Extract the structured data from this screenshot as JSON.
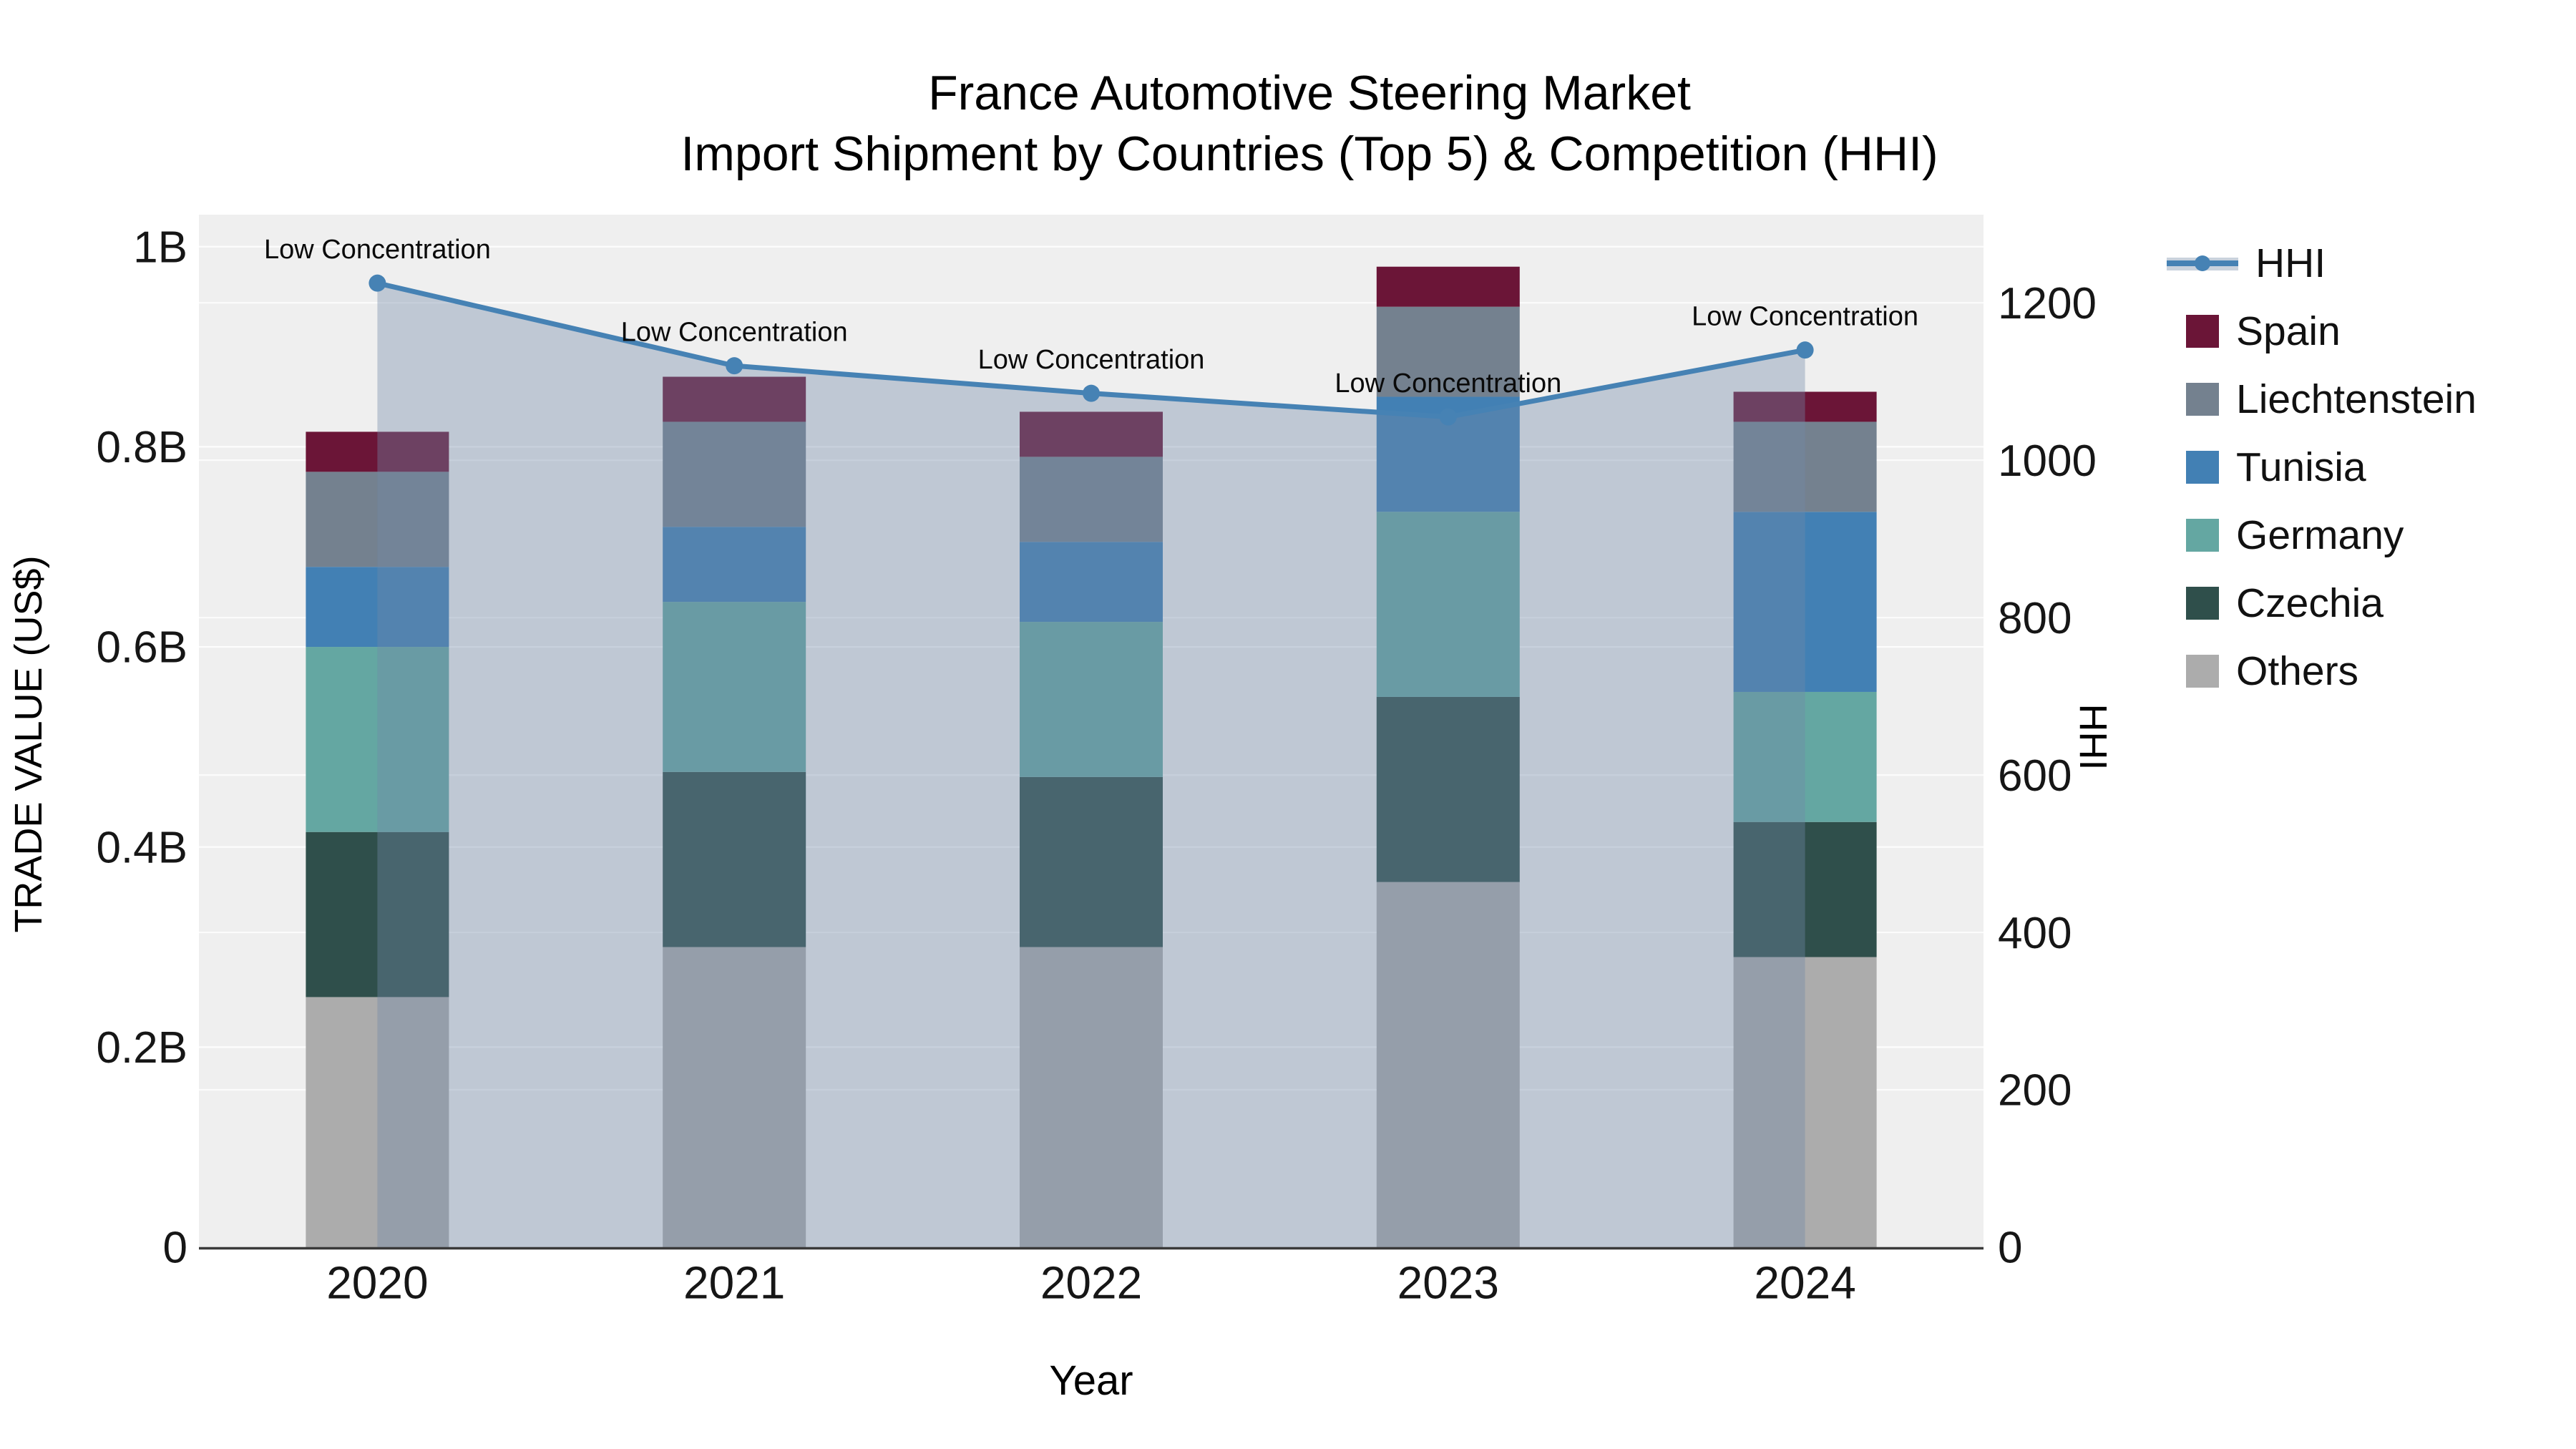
{
  "title": {
    "line1": "France Automotive Steering Market",
    "line2": "Import Shipment by Countries (Top 5) & Competition (HHI)"
  },
  "axes": {
    "x_title": "Year",
    "y_left_title": "TRADE VALUE (US$)",
    "y_right_title": "HHI",
    "x_ticks": [
      "2020",
      "2021",
      "2022",
      "2023",
      "2024"
    ],
    "y_left_ticks": [
      {
        "value": 0,
        "label": "0"
      },
      {
        "value": 0.2,
        "label": "0.2B"
      },
      {
        "value": 0.4,
        "label": "0.4B"
      },
      {
        "value": 0.6,
        "label": "0.6B"
      },
      {
        "value": 0.8,
        "label": "0.8B"
      },
      {
        "value": 1.0,
        "label": "1B"
      }
    ],
    "y_right_ticks": [
      {
        "value": 0,
        "label": "0"
      },
      {
        "value": 200,
        "label": "200"
      },
      {
        "value": 400,
        "label": "400"
      },
      {
        "value": 600,
        "label": "600"
      },
      {
        "value": 800,
        "label": "800"
      },
      {
        "value": 1000,
        "label": "1000"
      },
      {
        "value": 1200,
        "label": "1200"
      }
    ]
  },
  "legend": {
    "position": "right",
    "items": [
      {
        "label": "HHI",
        "type": "line-marker",
        "color": "#4682B4"
      },
      {
        "label": "Spain",
        "type": "swatch",
        "color": "#6B1537"
      },
      {
        "label": "Liechtenstein",
        "type": "swatch",
        "color": "#74818F"
      },
      {
        "label": "Tunisia",
        "type": "swatch",
        "color": "#4280B4"
      },
      {
        "label": "Germany",
        "type": "swatch",
        "color": "#64A7A2"
      },
      {
        "label": "Czechia",
        "type": "swatch",
        "color": "#2F4F4B"
      },
      {
        "label": "Others",
        "type": "swatch",
        "color": "#ACACAC"
      }
    ]
  },
  "colors": {
    "plot_background": "#efefef",
    "gridline": "#ffffff",
    "axis_line": "#3a3a3a",
    "tick_text": "#161616",
    "annotation_text": "#0a0a0a",
    "hhi_line": "#4682B4",
    "hhi_area_fill": "rgba(113,138,168,0.38)"
  },
  "chart_data": {
    "type": "composite",
    "components": [
      "stacked_bar",
      "line_with_area"
    ],
    "categories": [
      "2020",
      "2021",
      "2022",
      "2023",
      "2024"
    ],
    "bar_value_unit": "billion US$ (TRADE VALUE, left axis)",
    "bar_series": [
      {
        "name": "Spain",
        "color": "#6B1537",
        "values": [
          0.04,
          0.045,
          0.045,
          0.04,
          0.03
        ]
      },
      {
        "name": "Liechtenstein",
        "color": "#74818F",
        "values": [
          0.095,
          0.105,
          0.085,
          0.09,
          0.09
        ]
      },
      {
        "name": "Tunisia",
        "color": "#4280B4",
        "values": [
          0.08,
          0.075,
          0.08,
          0.115,
          0.18
        ]
      },
      {
        "name": "Germany",
        "color": "#64A7A2",
        "values": [
          0.185,
          0.17,
          0.155,
          0.185,
          0.13
        ]
      },
      {
        "name": "Czechia",
        "color": "#2F4F4B",
        "values": [
          0.165,
          0.175,
          0.17,
          0.185,
          0.135
        ]
      },
      {
        "name": "Others",
        "color": "#ACACAC",
        "values": [
          0.25,
          0.3,
          0.3,
          0.365,
          0.29
        ]
      }
    ],
    "stack_order_bottom_to_top": [
      "Others",
      "Czechia",
      "Germany",
      "Tunisia",
      "Liechtenstein",
      "Spain"
    ],
    "bar_totals": [
      0.815,
      0.87,
      0.835,
      0.98,
      0.855
    ],
    "line_series": {
      "name": "HHI",
      "axis": "right",
      "color": "#4682B4",
      "area_fill": "rgba(113,138,168,0.38)",
      "values": [
        1225,
        1120,
        1085,
        1055,
        1140
      ]
    },
    "annotations": [
      {
        "category": "2020",
        "text": "Low Concentration"
      },
      {
        "category": "2021",
        "text": "Low Concentration"
      },
      {
        "category": "2022",
        "text": "Low Concentration"
      },
      {
        "category": "2023",
        "text": "Low Concentration"
      },
      {
        "category": "2024",
        "text": "Low Concentration"
      }
    ],
    "y_left_range_billion": [
      0,
      1.032
    ],
    "y_right_range": [
      0,
      1312
    ],
    "grid": true,
    "legend_position": "right"
  }
}
